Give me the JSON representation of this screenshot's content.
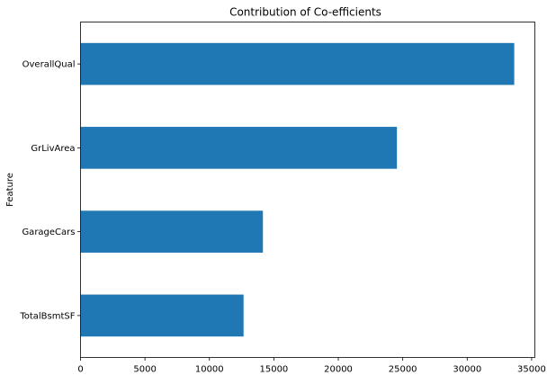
{
  "chart_data": {
    "type": "bar",
    "orientation": "horizontal",
    "title": "Contribution of Co-efficients",
    "xlabel": "",
    "ylabel": "Feature",
    "categories": [
      "TotalBsmtSF",
      "GarageCars",
      "GrLivArea",
      "OverallQual"
    ],
    "values": [
      12650,
      14150,
      24550,
      33650
    ],
    "xlim": [
      0,
      35250
    ],
    "xticks": [
      0,
      5000,
      10000,
      15000,
      20000,
      25000,
      30000,
      35000
    ],
    "grid": false,
    "legend": "none",
    "bar_color": "#1f77b4"
  }
}
